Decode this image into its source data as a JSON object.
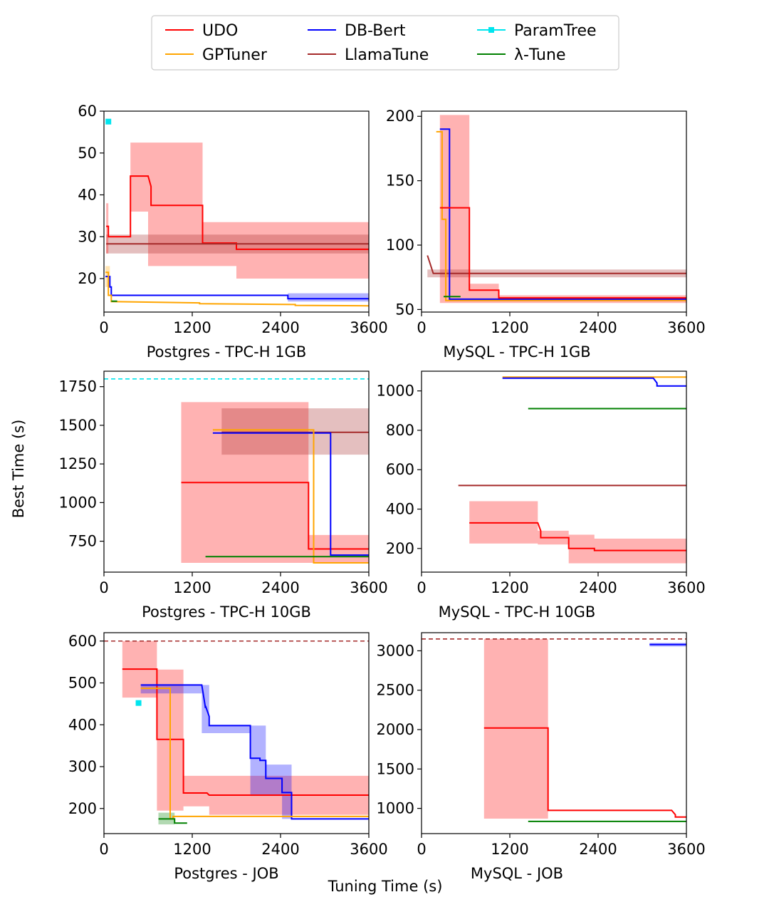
{
  "figure": {
    "shared_xlabel": "Tuning Time (s)",
    "shared_ylabel": "Best Time (s)"
  },
  "legend": {
    "entries": [
      {
        "name": "UDO",
        "color": "#ff0000",
        "marker": false
      },
      {
        "name": "GPTuner",
        "color": "#ffa500",
        "marker": false
      },
      {
        "name": "DB-Bert",
        "color": "#0000ff",
        "marker": false
      },
      {
        "name": "LlamaTune",
        "color": "#a52a2a",
        "marker": false
      },
      {
        "name": "ParamTree",
        "color": "#00e5ee",
        "marker": true
      },
      {
        "name": "λ-Tune",
        "color": "#008000",
        "marker": false
      }
    ]
  },
  "chart_data": [
    {
      "type": "line",
      "title": "Postgres - TPC-H 1GB",
      "xlim": [
        0,
        3600
      ],
      "ylim": [
        12,
        60
      ],
      "xticks": [
        0,
        1200,
        2400,
        3600
      ],
      "yticks": [
        20,
        30,
        40,
        50,
        60
      ],
      "bands": [
        {
          "series": "UDO",
          "x": [
            360,
            600,
            600,
            1340,
            1340,
            1800,
            1800,
            3600
          ],
          "lo": [
            36,
            36,
            23,
            23,
            23,
            23,
            20,
            20
          ],
          "hi": [
            52.5,
            52.5,
            52.5,
            52.5,
            33.5,
            33.5,
            33.5,
            33.5
          ]
        },
        {
          "series": "LlamaTune",
          "x": [
            30,
            3600
          ],
          "lo": [
            26,
            26
          ],
          "hi": [
            30.5,
            30.5
          ]
        },
        {
          "series": "UDO",
          "x": [
            30,
            60
          ],
          "lo": [
            26,
            26
          ],
          "hi": [
            38,
            38
          ]
        },
        {
          "series": "DB-Bert",
          "x": [
            2500,
            3600
          ],
          "lo": [
            14.5,
            14.5
          ],
          "hi": [
            16.5,
            16.5
          ]
        },
        {
          "series": "GPTuner",
          "x": [
            20,
            80
          ],
          "lo": [
            18,
            18
          ],
          "hi": [
            23,
            23
          ]
        }
      ],
      "series": [
        {
          "name": "UDO",
          "x": [
            30,
            60,
            60,
            360,
            360,
            600,
            640,
            640,
            1340,
            1340,
            1800,
            1800,
            3600
          ],
          "y": [
            32.5,
            32.5,
            30,
            30,
            44.5,
            44.5,
            42,
            37.5,
            37.5,
            28.5,
            28.5,
            27,
            27
          ]
        },
        {
          "name": "LlamaTune",
          "x": [
            30,
            3600
          ],
          "y": [
            28.3,
            28.3
          ]
        },
        {
          "name": "DB-Bert",
          "x": [
            20,
            80,
            80,
            100,
            100,
            2500,
            2500,
            3600
          ],
          "y": [
            20.5,
            20.5,
            18,
            18,
            16,
            16,
            15.2,
            15.2
          ]
        },
        {
          "name": "GPTuner",
          "x": [
            20,
            60,
            60,
            100,
            100,
            1300,
            1300,
            2600,
            2600,
            3600
          ],
          "y": [
            21.5,
            21.5,
            16,
            16,
            14.5,
            14.2,
            14,
            13.8,
            13.6,
            13.5
          ]
        },
        {
          "name": "λ-Tune",
          "x": [
            100,
            180
          ],
          "y": [
            14.6,
            14.6
          ]
        }
      ],
      "points": [
        {
          "series": "ParamTree",
          "x": 60,
          "y": 57.5
        }
      ],
      "hlines": []
    },
    {
      "type": "line",
      "title": "MySQL - TPC-H 1GB",
      "xlim": [
        0,
        3600
      ],
      "ylim": [
        48,
        204
      ],
      "xticks": [
        0,
        1200,
        2400,
        3600
      ],
      "yticks": [
        50,
        100,
        150,
        200
      ],
      "bands": [
        {
          "series": "UDO",
          "x": [
            250,
            650,
            650,
            1050,
            1050,
            3600
          ],
          "lo": [
            55,
            55,
            55,
            55,
            55,
            55
          ],
          "hi": [
            201,
            201,
            70,
            70,
            61,
            61
          ]
        },
        {
          "series": "LlamaTune",
          "x": [
            80,
            3600
          ],
          "lo": [
            75,
            75
          ],
          "hi": [
            81,
            81
          ]
        }
      ],
      "series": [
        {
          "name": "LlamaTune",
          "x": [
            80,
            120,
            160,
            3600
          ],
          "y": [
            92,
            85,
            78,
            78
          ]
        },
        {
          "name": "GPTuner",
          "x": [
            200,
            280,
            280,
            330,
            330,
            3600
          ],
          "y": [
            188,
            188,
            120,
            120,
            57,
            57
          ]
        },
        {
          "name": "DB-Bert",
          "x": [
            250,
            380,
            380,
            3600
          ],
          "y": [
            190,
            190,
            58,
            58
          ]
        },
        {
          "name": "UDO",
          "x": [
            250,
            650,
            650,
            1050,
            1050,
            3600
          ],
          "y": [
            129,
            129,
            65,
            65,
            59,
            59
          ]
        },
        {
          "name": "λ-Tune",
          "x": [
            300,
            530
          ],
          "y": [
            60,
            60
          ]
        }
      ],
      "points": [],
      "hlines": []
    },
    {
      "type": "line",
      "title": "Postgres - TPC-H 10GB",
      "xlim": [
        0,
        3600
      ],
      "ylim": [
        550,
        1850
      ],
      "xticks": [
        0,
        1200,
        2400,
        3600
      ],
      "yticks": [
        750,
        1000,
        1250,
        1500,
        1750
      ],
      "bands": [
        {
          "series": "UDO",
          "x": [
            1050,
            2780,
            2780,
            3600
          ],
          "lo": [
            610,
            610,
            610,
            610
          ],
          "hi": [
            1650,
            1650,
            790,
            790
          ]
        },
        {
          "series": "LlamaTune",
          "x": [
            1600,
            3600
          ],
          "lo": [
            1310,
            1310
          ],
          "hi": [
            1610,
            1610
          ]
        }
      ],
      "series": [
        {
          "name": "UDO",
          "x": [
            1050,
            2780,
            2780,
            3600
          ],
          "y": [
            1130,
            1130,
            700,
            700
          ]
        },
        {
          "name": "LlamaTune",
          "x": [
            1600,
            3600
          ],
          "y": [
            1455,
            1455
          ]
        },
        {
          "name": "DB-Bert",
          "x": [
            1480,
            3080,
            3080,
            3600
          ],
          "y": [
            1450,
            1450,
            660,
            660
          ]
        },
        {
          "name": "GPTuner",
          "x": [
            1480,
            2850,
            2850,
            3600
          ],
          "y": [
            1470,
            1470,
            610,
            610
          ]
        },
        {
          "name": "λ-Tune",
          "x": [
            1380,
            3600
          ],
          "y": [
            650,
            650
          ]
        }
      ],
      "points": [],
      "hlines": [
        {
          "series": "ParamTree",
          "y": 1800
        }
      ]
    },
    {
      "type": "line",
      "title": "MySQL - TPC-H 10GB",
      "xlim": [
        0,
        3600
      ],
      "ylim": [
        80,
        1100
      ],
      "xticks": [
        0,
        1200,
        2400,
        3600
      ],
      "yticks": [
        200,
        400,
        600,
        800,
        1000
      ],
      "bands": [
        {
          "series": "UDO",
          "x": [
            650,
            1580,
            1580,
            2000,
            2000,
            2350,
            2350,
            3600
          ],
          "lo": [
            225,
            225,
            220,
            220,
            125,
            125,
            125,
            125
          ],
          "hi": [
            440,
            440,
            290,
            290,
            270,
            270,
            250,
            250
          ]
        }
      ],
      "series": [
        {
          "name": "UDO",
          "x": [
            650,
            1580,
            1620,
            1620,
            2000,
            2000,
            2350,
            2350,
            3600
          ],
          "y": [
            330,
            330,
            290,
            255,
            255,
            200,
            200,
            190,
            190
          ]
        },
        {
          "name": "LlamaTune",
          "x": [
            500,
            3600
          ],
          "y": [
            520,
            520
          ]
        },
        {
          "name": "GPTuner",
          "x": [
            1100,
            3600
          ],
          "y": [
            1070,
            1070
          ]
        },
        {
          "name": "DB-Bert",
          "x": [
            1100,
            3150,
            3200,
            3200,
            3600
          ],
          "y": [
            1065,
            1065,
            1040,
            1025,
            1025
          ]
        },
        {
          "name": "λ-Tune",
          "x": [
            1450,
            3600
          ],
          "y": [
            910,
            910
          ]
        }
      ],
      "points": [],
      "hlines": []
    },
    {
      "type": "line",
      "title": "Postgres - JOB",
      "xlim": [
        0,
        3600
      ],
      "ylim": [
        140,
        620
      ],
      "xticks": [
        0,
        1200,
        2400,
        3600
      ],
      "yticks": [
        200,
        300,
        400,
        500,
        600
      ],
      "bands": [
        {
          "series": "UDO",
          "x": [
            250,
            720,
            720,
            1080,
            1080,
            1430,
            1430,
            3600
          ],
          "lo": [
            465,
            465,
            195,
            195,
            205,
            205,
            185,
            185
          ],
          "hi": [
            600,
            600,
            532,
            532,
            278,
            278,
            278,
            278
          ]
        },
        {
          "series": "DB-Bert",
          "x": [
            500,
            1330,
            1330,
            1430,
            1430,
            1990,
            1990,
            2200,
            2200,
            2420,
            2420,
            2550
          ],
          "lo": [
            475,
            475,
            380,
            380,
            380,
            380,
            230,
            230,
            230,
            230,
            175,
            175
          ],
          "hi": [
            495,
            495,
            495,
            495,
            398,
            398,
            398,
            398,
            305,
            305,
            305,
            305
          ]
        },
        {
          "series": "λ-Tune",
          "x": [
            740,
            960
          ],
          "lo": [
            162,
            162
          ],
          "hi": [
            190,
            190
          ]
        }
      ],
      "series": [
        {
          "name": "UDO",
          "x": [
            250,
            720,
            720,
            1080,
            1080,
            1400,
            1430,
            1430,
            3600
          ],
          "y": [
            533,
            533,
            365,
            365,
            237,
            237,
            232,
            232,
            232
          ]
        },
        {
          "name": "DB-Bert",
          "x": [
            500,
            1330,
            1380,
            1380,
            1430,
            1430,
            1990,
            1990,
            2120,
            2120,
            2200,
            2200,
            2420,
            2420,
            2550,
            2550,
            3600
          ],
          "y": [
            495,
            495,
            440,
            445,
            420,
            398,
            398,
            320,
            320,
            315,
            315,
            272,
            272,
            238,
            238,
            175,
            175
          ]
        },
        {
          "name": "GPTuner",
          "x": [
            500,
            900,
            900,
            940,
            940,
            3600
          ],
          "y": [
            487,
            487,
            175,
            175,
            181,
            181
          ]
        },
        {
          "name": "λ-Tune",
          "x": [
            740,
            960,
            960,
            1130
          ],
          "y": [
            175,
            175,
            165,
            165
          ]
        }
      ],
      "points": [
        {
          "series": "ParamTree",
          "x": 470,
          "y": 452
        }
      ],
      "hlines": [
        {
          "series": "LlamaTune",
          "y": 600
        }
      ]
    },
    {
      "type": "line",
      "title": "MySQL - JOB",
      "xlim": [
        0,
        3600
      ],
      "ylim": [
        680,
        3230
      ],
      "xticks": [
        0,
        1200,
        2400,
        3600
      ],
      "yticks": [
        1000,
        1500,
        2000,
        2500,
        3000
      ],
      "bands": [
        {
          "series": "UDO",
          "x": [
            850,
            1720
          ],
          "lo": [
            870,
            870
          ],
          "hi": [
            3150,
            3150
          ]
        },
        {
          "series": "DB-Bert",
          "x": [
            3100,
            3600
          ],
          "lo": [
            3055,
            3055
          ],
          "hi": [
            3100,
            3100
          ]
        }
      ],
      "series": [
        {
          "name": "UDO",
          "x": [
            850,
            1720,
            1720,
            3400,
            3450,
            3450,
            3600
          ],
          "y": [
            2020,
            2020,
            975,
            975,
            920,
            890,
            890
          ]
        },
        {
          "name": "DB-Bert",
          "x": [
            3100,
            3600
          ],
          "y": [
            3080,
            3080
          ]
        },
        {
          "name": "λ-Tune",
          "x": [
            1450,
            3600
          ],
          "y": [
            835,
            835
          ]
        }
      ],
      "points": [],
      "hlines": [
        {
          "series": "LlamaTune",
          "y": 3150
        }
      ]
    }
  ]
}
